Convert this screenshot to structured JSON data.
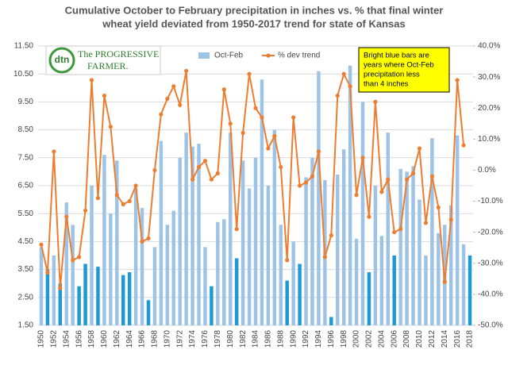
{
  "chart_data": {
    "type": "bar_line",
    "title": [
      "Cumulative October to February precipitation in inches vs. % that final winter",
      "wheat yield deviated from 1950-2017 trend for state of Kansas"
    ],
    "logo": {
      "mark": "dtn",
      "lines": [
        "The PROGRESSIVE",
        "FARMER."
      ]
    },
    "annotation": [
      "Bright blue bars are",
      "years where Oct-Feb",
      "precipitation less",
      "than 4 inches"
    ],
    "categories": [
      "1950",
      null,
      "1952",
      null,
      "1954",
      null,
      "1956",
      null,
      "1958",
      null,
      "1960",
      null,
      "1962",
      null,
      "1964",
      null,
      "1966",
      null,
      "1968",
      null,
      "1970",
      null,
      "1972",
      null,
      "1974",
      null,
      "1976",
      null,
      "1978",
      null,
      "1980",
      null,
      "1982",
      null,
      "1984",
      null,
      "1986",
      null,
      "1988",
      null,
      "1990",
      null,
      "1992",
      null,
      "1994",
      null,
      "1996",
      null,
      "1998",
      null,
      "2000",
      null,
      "2002",
      null,
      "2004",
      null,
      "2006",
      null,
      "2008",
      null,
      "2010",
      null,
      "2012",
      null,
      "2014",
      null,
      "2016",
      null,
      "2018"
    ],
    "series": [
      {
        "name": "Oct-Feb",
        "type": "bar",
        "color": "#9dc3e6",
        "bar_colors": [
          "#9dc3e6",
          "#1b9ad6",
          "#9dc3e6",
          "#1b9ad6",
          "#9dc3e6",
          "#9dc3e6",
          "#1b9ad6",
          "#1b9ad6",
          "#9dc3e6",
          "#1b9ad6",
          "#9dc3e6",
          "#9dc3e6",
          "#9dc3e6",
          "#1b9ad6",
          "#1b9ad6",
          "#9dc3e6",
          "#9dc3e6",
          "#1b9ad6",
          "#9dc3e6",
          "#9dc3e6",
          "#9dc3e6",
          "#9dc3e6",
          "#9dc3e6",
          "#9dc3e6",
          "#9dc3e6",
          "#9dc3e6",
          "#9dc3e6",
          "#1b9ad6",
          "#9dc3e6",
          "#9dc3e6",
          "#9dc3e6",
          "#1b9ad6",
          "#9dc3e6",
          "#9dc3e6",
          "#9dc3e6",
          "#9dc3e6",
          "#9dc3e6",
          "#9dc3e6",
          "#9dc3e6",
          "#1b9ad6",
          "#9dc3e6",
          "#1b9ad6",
          "#9dc3e6",
          "#9dc3e6",
          "#9dc3e6",
          "#9dc3e6",
          "#1b9ad6",
          "#9dc3e6",
          "#9dc3e6",
          "#9dc3e6",
          "#9dc3e6",
          "#9dc3e6",
          "#1b9ad6",
          "#9dc3e6",
          "#9dc3e6",
          "#9dc3e6",
          "#1b9ad6",
          "#9dc3e6",
          "#9dc3e6",
          "#9dc3e6",
          "#9dc3e6",
          "#9dc3e6",
          "#9dc3e6",
          "#9dc3e6",
          "#9dc3e6",
          "#9dc3e6",
          "#9dc3e6",
          "#9dc3e6",
          "#1b9ad6"
        ],
        "values": [
          4.3,
          3.5,
          4.0,
          3.0,
          5.9,
          5.1,
          2.9,
          3.7,
          6.5,
          3.6,
          7.6,
          5.5,
          7.4,
          3.3,
          3.4,
          6.4,
          5.7,
          2.4,
          4.3,
          8.1,
          5.1,
          5.6,
          7.5,
          8.4,
          7.9,
          8.0,
          4.3,
          2.9,
          5.2,
          5.3,
          8.4,
          3.9,
          7.4,
          6.4,
          7.5,
          10.3,
          6.5,
          8.5,
          5.1,
          3.1,
          4.5,
          3.7,
          6.8,
          7.5,
          10.6,
          6.7,
          1.8,
          6.9,
          7.8,
          10.8,
          4.6,
          9.5,
          3.4,
          6.5,
          4.7,
          8.4,
          4.0,
          7.1,
          7.0,
          7.2,
          6.0,
          4.0,
          8.2,
          4.8,
          5.1,
          5.8,
          8.3,
          4.4,
          4.0
        ]
      },
      {
        "name": "% dev trend",
        "type": "line",
        "axis": "y2",
        "color": "#ed7d31",
        "values": [
          -24,
          -33,
          6,
          -38,
          -15,
          -29,
          -28,
          -13,
          29,
          -9,
          24,
          14,
          -8,
          -11,
          -10,
          -5,
          -23,
          -22,
          0,
          18,
          23,
          27,
          21,
          32,
          -3,
          1,
          3,
          -3,
          -1,
          26,
          15,
          -19,
          12,
          31,
          20,
          17,
          7,
          11,
          1,
          -29,
          17,
          -5,
          -4,
          -2,
          6,
          -28,
          -21,
          24,
          31,
          27,
          -8,
          4,
          -15,
          22,
          -7,
          -3,
          -20,
          -19,
          -3,
          -1,
          7,
          -17,
          -2,
          -12,
          -36,
          -16,
          29,
          8,
          null
        ]
      }
    ],
    "ylim": [
      1.5,
      11.5
    ],
    "yticks": [
      {
        "value": 1.5,
        "label": "1.50"
      },
      {
        "value": 2.5,
        "label": "2.50"
      },
      {
        "value": 3.5,
        "label": "3.50"
      },
      {
        "value": 4.5,
        "label": "4.50"
      },
      {
        "value": 5.5,
        "label": "5.50"
      },
      {
        "value": 6.5,
        "label": "6.50"
      },
      {
        "value": 7.5,
        "label": "7.50"
      },
      {
        "value": 8.5,
        "label": "8.50"
      },
      {
        "value": 9.5,
        "label": "9.50"
      },
      {
        "value": 10.5,
        "label": "10.50"
      },
      {
        "value": 11.5,
        "label": "11.50"
      }
    ],
    "y2lim": [
      -50,
      40
    ],
    "y2ticks": [
      {
        "value": -50,
        "label": "-50.0%"
      },
      {
        "value": -40,
        "label": "-40.0%"
      },
      {
        "value": -30,
        "label": "-30.0%"
      },
      {
        "value": -20,
        "label": "-20.0%"
      },
      {
        "value": -10,
        "label": "-10.0%"
      },
      {
        "value": 0,
        "label": "0.0%"
      },
      {
        "value": 10,
        "label": "10.0%"
      },
      {
        "value": 20,
        "label": "20.0%"
      },
      {
        "value": 30,
        "label": "30.0%"
      },
      {
        "value": 40,
        "label": "40.0%"
      }
    ],
    "grid": true
  }
}
